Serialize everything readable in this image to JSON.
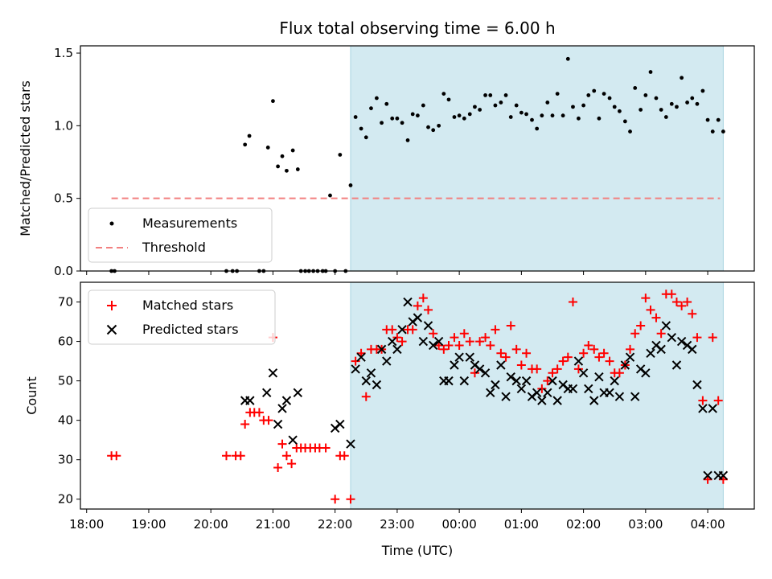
{
  "title": "Flux total observing time = 6.00 h",
  "colors": {
    "observing_span": "#d3eaf1",
    "measurement": "#000000",
    "threshold": "#f28080",
    "matched": "#ff0000",
    "predicted": "#000000"
  },
  "chart_data": [
    {
      "type": "scatter",
      "ylabel": "Matched/Predicted stars",
      "ylim": [
        0,
        1.55
      ],
      "yticks": [
        0.0,
        0.5,
        1.0,
        1.5
      ],
      "ytick_labels": [
        "0.0",
        "0.5",
        "1.0",
        "1.5"
      ],
      "xlim_hours": [
        17.9,
        28.75
      ],
      "shaded_span_hours": [
        22.25,
        28.25
      ],
      "legend_position": "lower-left",
      "legend": [
        "Measurements",
        "Threshold"
      ],
      "threshold": {
        "value": 0.5,
        "x_hours": [
          18.4,
          28.2
        ]
      },
      "series": [
        {
          "name": "Measurements",
          "x": [
            18.4,
            18.45,
            20.25,
            20.35,
            20.42,
            20.55,
            20.62,
            20.78,
            20.85,
            20.92,
            21.0,
            21.08,
            21.15,
            21.22,
            21.32,
            21.4,
            21.45,
            21.52,
            21.58,
            21.65,
            21.72,
            21.8,
            21.85,
            21.92,
            22.0,
            22.08,
            22.17,
            22.25,
            22.33,
            22.42,
            22.5,
            22.58,
            22.67,
            22.75,
            22.83,
            22.92,
            23.0,
            23.08,
            23.17,
            23.25,
            23.33,
            23.42,
            23.5,
            23.58,
            23.67,
            23.75,
            23.83,
            23.92,
            24.0,
            24.08,
            24.17,
            24.25,
            24.33,
            24.42,
            24.5,
            24.58,
            24.67,
            24.75,
            24.83,
            24.92,
            25.0,
            25.08,
            25.17,
            25.25,
            25.33,
            25.42,
            25.5,
            25.58,
            25.67,
            25.75,
            25.83,
            25.92,
            26.0,
            26.08,
            26.17,
            26.25,
            26.33,
            26.42,
            26.5,
            26.58,
            26.67,
            26.75,
            26.83,
            26.92,
            27.0,
            27.08,
            27.17,
            27.25,
            27.33,
            27.42,
            27.5,
            27.58,
            27.67,
            27.75,
            27.83,
            27.92,
            28.0,
            28.08,
            28.17,
            28.25
          ],
          "y": [
            0.0,
            0.0,
            0.0,
            0.0,
            0.0,
            0.87,
            0.93,
            0.0,
            0.0,
            0.85,
            1.17,
            0.72,
            0.79,
            0.69,
            0.83,
            0.7,
            0.0,
            0.0,
            0.0,
            0.0,
            0.0,
            0.0,
            0.0,
            0.52,
            0.0,
            0.8,
            0.0,
            0.59,
            1.06,
            0.98,
            0.92,
            1.12,
            1.19,
            1.02,
            1.15,
            1.05,
            1.05,
            1.02,
            0.9,
            1.08,
            1.07,
            1.14,
            0.99,
            0.97,
            1.0,
            1.22,
            1.18,
            1.06,
            1.07,
            1.05,
            1.08,
            1.13,
            1.11,
            1.21,
            1.21,
            1.14,
            1.16,
            1.21,
            1.06,
            1.14,
            1.09,
            1.08,
            1.04,
            0.98,
            1.07,
            1.16,
            1.07,
            1.22,
            1.07,
            1.46,
            1.13,
            1.05,
            1.14,
            1.21,
            1.24,
            1.05,
            1.22,
            1.19,
            1.13,
            1.1,
            1.03,
            0.96,
            1.26,
            1.11,
            1.21,
            1.37,
            1.19,
            1.11,
            1.06,
            1.15,
            1.13,
            1.33,
            1.16,
            1.19,
            1.15,
            1.24,
            1.04,
            0.96,
            1.04,
            0.96
          ]
        }
      ]
    },
    {
      "type": "scatter",
      "xlabel": "Time (UTC)",
      "ylabel": "Count",
      "ylim": [
        17.5,
        75
      ],
      "yticks": [
        20,
        30,
        40,
        50,
        60,
        70
      ],
      "ytick_labels": [
        "20",
        "30",
        "40",
        "50",
        "60",
        "70"
      ],
      "xtick_labels": [
        "18:00",
        "19:00",
        "20:00",
        "21:00",
        "22:00",
        "23:00",
        "00:00",
        "01:00",
        "02:00",
        "03:00",
        "04:00"
      ],
      "xlim_hours": [
        17.9,
        28.75
      ],
      "shaded_span_hours": [
        22.25,
        28.25
      ],
      "legend_position": "upper-left",
      "legend": [
        "Matched stars",
        "Predicted stars"
      ],
      "series": [
        {
          "name": "Matched stars",
          "x": [
            18.4,
            18.48,
            20.25,
            20.4,
            20.48,
            20.55,
            20.63,
            20.7,
            20.78,
            20.85,
            20.93,
            21.0,
            21.08,
            21.15,
            21.22,
            21.3,
            21.38,
            21.45,
            21.52,
            21.6,
            21.68,
            21.75,
            21.85,
            22.0,
            22.08,
            22.15,
            22.25,
            22.33,
            22.42,
            22.5,
            22.58,
            22.67,
            22.75,
            22.83,
            22.92,
            23.0,
            23.08,
            23.17,
            23.25,
            23.33,
            23.42,
            23.5,
            23.58,
            23.67,
            23.75,
            23.83,
            23.92,
            24.0,
            24.08,
            24.17,
            24.25,
            24.33,
            24.42,
            24.5,
            24.58,
            24.67,
            24.75,
            24.83,
            24.92,
            25.0,
            25.08,
            25.17,
            25.25,
            25.33,
            25.42,
            25.5,
            25.58,
            25.67,
            25.75,
            25.83,
            25.92,
            26.0,
            26.08,
            26.17,
            26.25,
            26.33,
            26.42,
            26.5,
            26.58,
            26.67,
            26.75,
            26.83,
            26.92,
            27.0,
            27.08,
            27.17,
            27.25,
            27.33,
            27.42,
            27.5,
            27.58,
            27.67,
            27.75,
            27.83,
            27.92,
            28.0,
            28.08,
            28.17,
            28.25
          ],
          "y": [
            31,
            31,
            31,
            31,
            31,
            39,
            42,
            42,
            42,
            40,
            40,
            61,
            28,
            34,
            31,
            29,
            33,
            33,
            33,
            33,
            33,
            33,
            33,
            20,
            31,
            31,
            20,
            55,
            57,
            46,
            58,
            58,
            58,
            63,
            63,
            61,
            60,
            63,
            63,
            69,
            71,
            68,
            62,
            59,
            58,
            59,
            61,
            59,
            62,
            60,
            52,
            60,
            61,
            59,
            63,
            57,
            56,
            64,
            58,
            54,
            57,
            53,
            53,
            48,
            50,
            52,
            53,
            55,
            56,
            70,
            53,
            57,
            59,
            58,
            56,
            57,
            55,
            52,
            52,
            54,
            58,
            62,
            64,
            71,
            68,
            66,
            62,
            72,
            72,
            70,
            69,
            70,
            67,
            61,
            45,
            25,
            61,
            45,
            25
          ],
          "note_ignore": ""
        },
        {
          "name": "Predicted stars",
          "x": [
            20.55,
            20.63,
            20.9,
            21.0,
            21.08,
            21.15,
            21.22,
            21.32,
            21.4,
            22.0,
            22.08,
            22.25,
            22.33,
            22.42,
            22.5,
            22.58,
            22.67,
            22.75,
            22.83,
            22.92,
            23.0,
            23.08,
            23.17,
            23.25,
            23.33,
            23.42,
            23.5,
            23.58,
            23.67,
            23.75,
            23.83,
            23.92,
            24.0,
            24.08,
            24.17,
            24.25,
            24.33,
            24.42,
            24.5,
            24.58,
            24.67,
            24.75,
            24.83,
            24.92,
            25.0,
            25.08,
            25.17,
            25.25,
            25.33,
            25.42,
            25.5,
            25.58,
            25.67,
            25.75,
            25.83,
            25.92,
            26.0,
            26.08,
            26.17,
            26.25,
            26.33,
            26.42,
            26.5,
            26.58,
            26.67,
            26.75,
            26.83,
            26.92,
            27.0,
            27.08,
            27.17,
            27.25,
            27.33,
            27.42,
            27.5,
            27.58,
            27.67,
            27.75,
            27.83,
            27.92,
            28.0,
            28.08,
            28.17,
            28.25
          ],
          "y": [
            45,
            45,
            47,
            52,
            39,
            43,
            45,
            35,
            47,
            38,
            39,
            34,
            53,
            56,
            50,
            52,
            49,
            58,
            55,
            60,
            58,
            63,
            70,
            65,
            66,
            60,
            64,
            59,
            60,
            50,
            50,
            54,
            56,
            50,
            56,
            54,
            53,
            52,
            47,
            49,
            54,
            46,
            51,
            50,
            48,
            50,
            46,
            47,
            45,
            47,
            50,
            45,
            49,
            48,
            48,
            55,
            52,
            48,
            45,
            51,
            47,
            47,
            50,
            46,
            54,
            56,
            46,
            53,
            52,
            57,
            59,
            58,
            64,
            61,
            54,
            60,
            59,
            58,
            49,
            43,
            26,
            43,
            26,
            26
          ]
        }
      ]
    }
  ]
}
